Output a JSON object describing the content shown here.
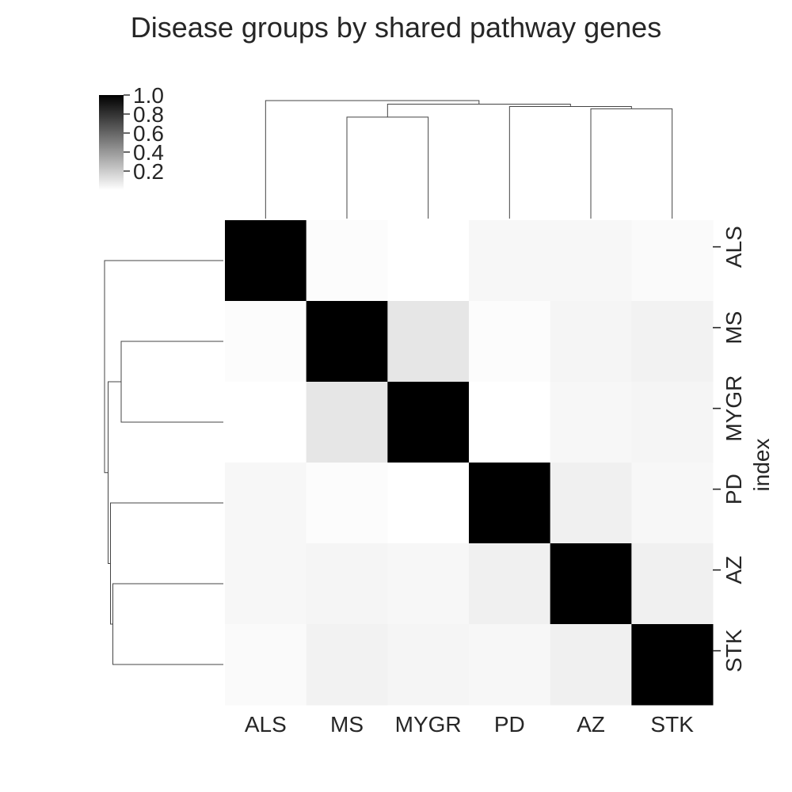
{
  "chart_data": {
    "type": "heatmap",
    "title": "Disease groups by shared pathway genes",
    "xlabel": "",
    "ylabel": "index",
    "col_labels": [
      "ALS",
      "MS",
      "MYGR",
      "PD",
      "AZ",
      "STK"
    ],
    "row_labels": [
      "ALS",
      "MS",
      "MYGR",
      "PD",
      "AZ",
      "STK"
    ],
    "values": [
      [
        1.0,
        0.01,
        0.0,
        0.03,
        0.03,
        0.02
      ],
      [
        0.01,
        1.0,
        0.1,
        0.01,
        0.04,
        0.05
      ],
      [
        0.0,
        0.1,
        1.0,
        0.0,
        0.03,
        0.04
      ],
      [
        0.03,
        0.01,
        0.0,
        1.0,
        0.06,
        0.03
      ],
      [
        0.03,
        0.04,
        0.03,
        0.06,
        1.0,
        0.06
      ],
      [
        0.02,
        0.05,
        0.04,
        0.03,
        0.06,
        1.0
      ]
    ],
    "colorbar": {
      "ticks": [
        "0.2",
        "0.4",
        "0.6",
        "0.8",
        "1.0"
      ],
      "range": [
        0.0,
        1.0
      ],
      "colors": [
        "#ffffff",
        "#000000"
      ]
    },
    "col_dendrogram": [
      {
        "a": 1,
        "b": 2,
        "h": 0.86
      },
      {
        "a": 4,
        "b": 5,
        "h": 0.93
      },
      {
        "a": 3,
        "b": 4.5,
        "h": 0.95
      },
      {
        "a": 1.5,
        "b": 3.75,
        "h": 0.97
      },
      {
        "a": 0,
        "b": 2.625,
        "h": 1.0
      }
    ],
    "row_dendrogram": [
      {
        "a": 1,
        "b": 2,
        "h": 0.86
      },
      {
        "a": 4,
        "b": 5,
        "h": 0.93
      },
      {
        "a": 3,
        "b": 4.5,
        "h": 0.95
      },
      {
        "a": 1.5,
        "b": 3.75,
        "h": 0.97
      },
      {
        "a": 0,
        "b": 2.625,
        "h": 1.0
      }
    ],
    "grid": false
  }
}
